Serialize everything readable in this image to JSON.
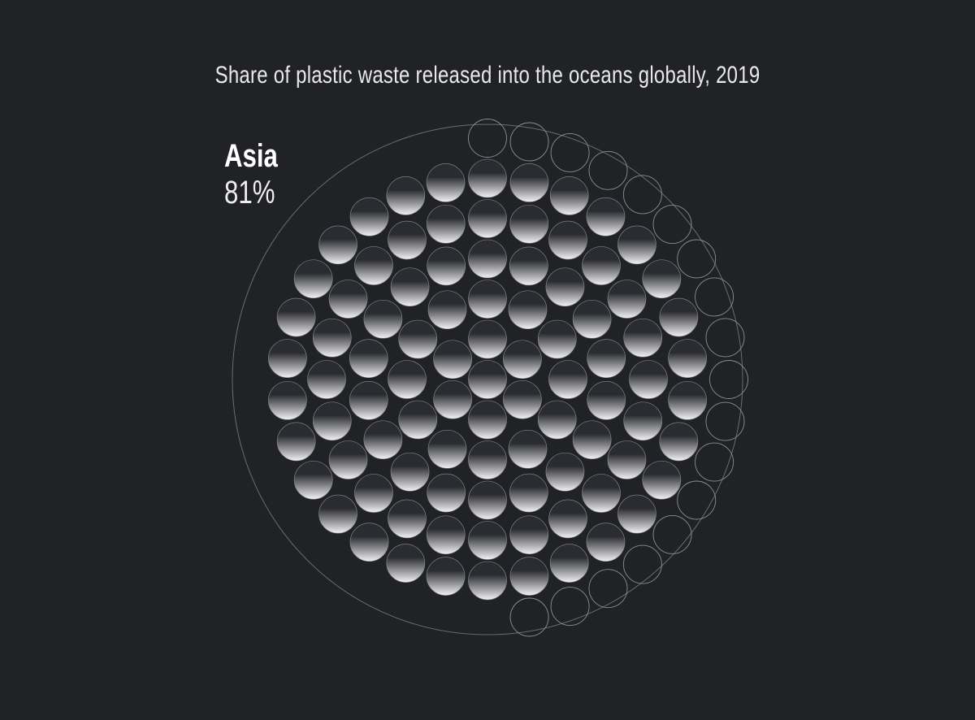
{
  "chart_data": {
    "type": "pie",
    "title": "Share of plastic waste released into the oceans globally, 2019",
    "categories": [
      "Asia"
    ],
    "values": [
      81
    ],
    "unit": "%",
    "total_markers": 109,
    "legend_placement": "top-left",
    "value_label": "81%",
    "colors": {
      "filled_top": "#2b2c31",
      "filled_bottom": "#f2f2f4",
      "empty_stroke": "#8d8e93",
      "outer_ring": "#6b6c70",
      "background": "#212226"
    }
  }
}
